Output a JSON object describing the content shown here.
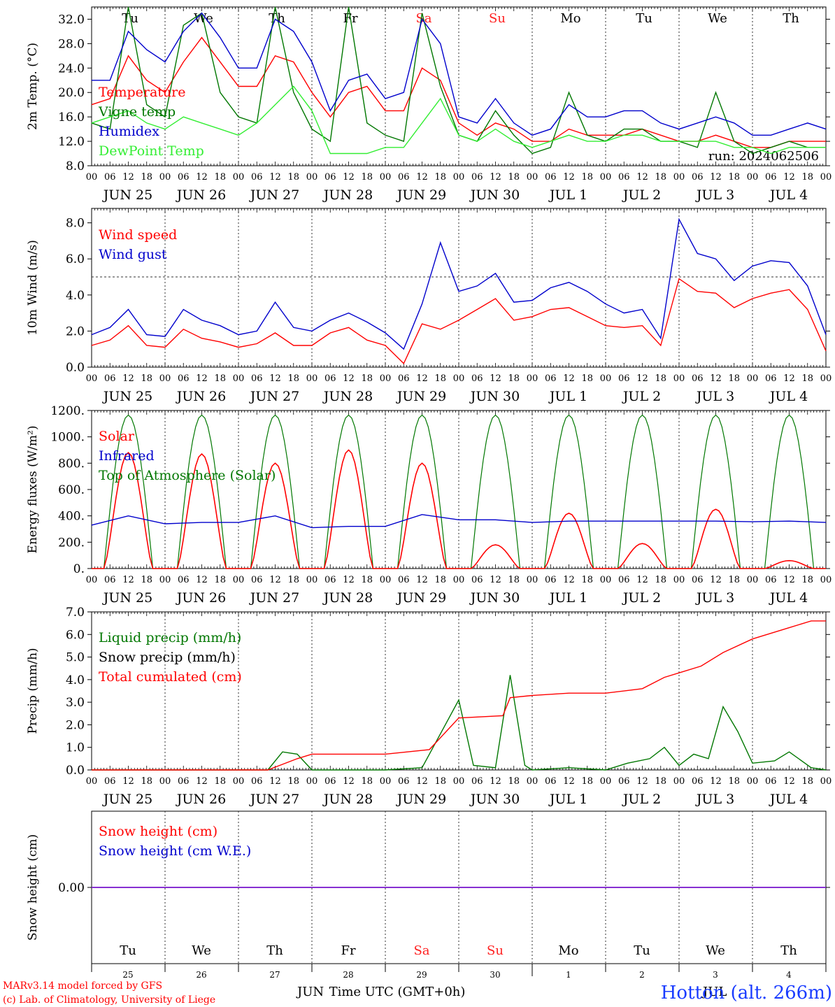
{
  "days": [
    {
      "name": "Tu",
      "color": "#000000",
      "date": "JUN 25",
      "num": "25"
    },
    {
      "name": "We",
      "color": "#000000",
      "date": "JUN 26",
      "num": "26"
    },
    {
      "name": "Th",
      "color": "#000000",
      "date": "JUN 27",
      "num": "27"
    },
    {
      "name": "Fr",
      "color": "#000000",
      "date": "JUN 28",
      "num": "28"
    },
    {
      "name": "Sa",
      "color": "#ff2020",
      "date": "JUN 29",
      "num": "29"
    },
    {
      "name": "Su",
      "color": "#ff2020",
      "date": "JUN 30",
      "num": "30"
    },
    {
      "name": "Mo",
      "color": "#000000",
      "date": "JUL  1",
      "num": "1"
    },
    {
      "name": "Tu",
      "color": "#000000",
      "date": "JUL  2",
      "num": "2"
    },
    {
      "name": "We",
      "color": "#000000",
      "date": "JUL  3",
      "num": "3"
    },
    {
      "name": "Th",
      "color": "#000000",
      "date": "JUL  4",
      "num": "4"
    }
  ],
  "hour_labels": [
    "00",
    "06",
    "12",
    "18"
  ],
  "footer": {
    "credit_line1": "MARv3.14 model forced by GFS",
    "credit_line2": "(c) Lab. of Climatology, University of Liege",
    "xlabel": "Time UTC (GMT+0h)",
    "month_left": "JUN",
    "month_right": "JUL",
    "station": "Hotton (alt. 266m)"
  },
  "chart_data": [
    {
      "type": "line",
      "ylabel": "2m Temp. (°C)",
      "ylim": [
        8,
        34
      ],
      "yticks": [
        "8.0",
        "12.0",
        "16.0",
        "20.0",
        "24.0",
        "28.0",
        "32.0"
      ],
      "run_label": "run: 2024062506",
      "legend": [
        "Temperature",
        "Vigne temp",
        "Humidex",
        "DewPoint Temp"
      ],
      "series": [
        {
          "name": "Temperature",
          "color": "#ff0000",
          "x": [
            0,
            0.25,
            0.5,
            0.75,
            1,
            1.25,
            1.5,
            1.75,
            2,
            2.25,
            2.5,
            2.75,
            3,
            3.25,
            3.5,
            3.75,
            4,
            4.25,
            4.5,
            4.75,
            5,
            5.25,
            5.5,
            5.75,
            6,
            6.25,
            6.5,
            6.75,
            7,
            7.25,
            7.5,
            7.75,
            8,
            8.25,
            8.5,
            8.75,
            9,
            9.25,
            9.5,
            9.75,
            10
          ],
          "y": [
            18,
            19,
            26,
            22,
            20,
            25,
            29,
            25,
            21,
            21,
            26,
            25,
            20,
            16,
            20,
            21,
            17,
            17,
            24,
            22,
            15,
            13,
            15,
            14,
            12,
            12,
            14,
            13,
            13,
            13,
            14,
            13,
            12,
            12,
            13,
            12,
            11,
            11,
            12,
            12,
            12
          ]
        },
        {
          "name": "Vigne temp",
          "color": "#007700",
          "x": [
            0,
            0.25,
            0.5,
            0.75,
            1,
            1.25,
            1.5,
            1.75,
            2,
            2.25,
            2.5,
            2.75,
            3,
            3.25,
            3.5,
            3.75,
            4,
            4.25,
            4.5,
            4.75,
            5,
            5.25,
            5.5,
            5.75,
            6,
            6.25,
            6.5,
            6.75,
            7,
            7.25,
            7.5,
            7.75,
            8,
            8.25,
            8.5,
            8.75,
            9,
            9.25,
            9.5,
            9.75,
            10
          ],
          "y": [
            15,
            14,
            34,
            18,
            16,
            31,
            33,
            20,
            16,
            15,
            34,
            20,
            14,
            12,
            34,
            15,
            13,
            12,
            33,
            21,
            13,
            12,
            17,
            13,
            10,
            11,
            20,
            13,
            12,
            14,
            14,
            12,
            12,
            11,
            20,
            12,
            10,
            11,
            12,
            11,
            11
          ]
        },
        {
          "name": "Humidex",
          "color": "#0000cc",
          "x": [
            0,
            0.25,
            0.5,
            0.75,
            1,
            1.25,
            1.5,
            1.75,
            2,
            2.25,
            2.5,
            2.75,
            3,
            3.25,
            3.5,
            3.75,
            4,
            4.25,
            4.5,
            4.75,
            5,
            5.25,
            5.5,
            5.75,
            6,
            6.25,
            6.5,
            6.75,
            7,
            7.25,
            7.5,
            7.75,
            8,
            8.25,
            8.5,
            8.75,
            9,
            9.25,
            9.5,
            9.75,
            10
          ],
          "y": [
            22,
            22,
            30,
            27,
            25,
            30,
            33,
            29,
            24,
            24,
            32,
            30,
            25,
            17,
            22,
            23,
            19,
            20,
            32,
            28,
            16,
            15,
            19,
            15,
            13,
            14,
            18,
            16,
            16,
            17,
            17,
            15,
            14,
            15,
            16,
            15,
            13,
            13,
            14,
            15,
            14
          ]
        },
        {
          "name": "DewPoint Temp",
          "color": "#33ee33",
          "x": [
            0,
            0.25,
            0.5,
            0.75,
            1,
            1.25,
            1.5,
            1.75,
            2,
            2.25,
            2.5,
            2.75,
            3,
            3.25,
            3.5,
            3.75,
            4,
            4.25,
            4.5,
            4.75,
            5,
            5.25,
            5.5,
            5.75,
            6,
            6.25,
            6.5,
            6.75,
            7,
            7.25,
            7.5,
            7.75,
            8,
            8.25,
            8.5,
            8.75,
            9,
            9.25,
            9.5,
            9.75,
            10
          ],
          "y": [
            15,
            16,
            17,
            15,
            14,
            16,
            15,
            14,
            13,
            15,
            18,
            21,
            17,
            10,
            10,
            10,
            11,
            11,
            15,
            19,
            13,
            12,
            14,
            12,
            11,
            12,
            13,
            12,
            12,
            13,
            13,
            12,
            12,
            12,
            12,
            11,
            11,
            10,
            11,
            11,
            11
          ]
        }
      ]
    },
    {
      "type": "line",
      "ylabel": "10m Wind (m/s)",
      "ylim": [
        0,
        8.8
      ],
      "yticks": [
        "0.0",
        "2.0",
        "4.0",
        "6.0",
        "8.0"
      ],
      "threshold": 5,
      "legend": [
        "Wind speed",
        "Wind gust"
      ],
      "series": [
        {
          "name": "Wind speed",
          "color": "#ff0000",
          "x": [
            0,
            0.25,
            0.5,
            0.75,
            1,
            1.25,
            1.5,
            1.75,
            2,
            2.25,
            2.5,
            2.75,
            3,
            3.25,
            3.5,
            3.75,
            4,
            4.25,
            4.5,
            4.75,
            5,
            5.25,
            5.5,
            5.75,
            6,
            6.25,
            6.5,
            6.75,
            7,
            7.25,
            7.5,
            7.75,
            8,
            8.25,
            8.5,
            8.75,
            9,
            9.25,
            9.5,
            9.75,
            10
          ],
          "y": [
            1.2,
            1.5,
            2.3,
            1.2,
            1.1,
            2.1,
            1.6,
            1.4,
            1.1,
            1.3,
            1.9,
            1.2,
            1.2,
            1.9,
            2.2,
            1.5,
            1.2,
            0.2,
            2.4,
            2.1,
            2.6,
            3.2,
            3.8,
            2.6,
            2.8,
            3.2,
            3.3,
            2.8,
            2.3,
            2.2,
            2.3,
            1.2,
            4.9,
            4.2,
            4.1,
            3.3,
            3.8,
            4.1,
            4.3,
            3.2,
            0.9
          ]
        },
        {
          "name": "Wind gust",
          "color": "#0000cc",
          "x": [
            0,
            0.25,
            0.5,
            0.75,
            1,
            1.25,
            1.5,
            1.75,
            2,
            2.25,
            2.5,
            2.75,
            3,
            3.25,
            3.5,
            3.75,
            4,
            4.25,
            4.5,
            4.75,
            5,
            5.25,
            5.5,
            5.75,
            6,
            6.25,
            6.5,
            6.75,
            7,
            7.25,
            7.5,
            7.75,
            8,
            8.25,
            8.5,
            8.75,
            9,
            9.25,
            9.5,
            9.75,
            10
          ],
          "y": [
            1.8,
            2.2,
            3.2,
            1.8,
            1.7,
            3.2,
            2.6,
            2.3,
            1.8,
            2.0,
            3.6,
            2.2,
            2.0,
            2.6,
            3.0,
            2.5,
            1.9,
            1.0,
            3.5,
            6.9,
            4.2,
            4.5,
            5.2,
            3.6,
            3.7,
            4.4,
            4.7,
            4.2,
            3.5,
            3.0,
            3.2,
            1.6,
            8.2,
            6.3,
            6.0,
            4.8,
            5.6,
            5.9,
            5.8,
            4.5,
            1.8
          ]
        }
      ]
    },
    {
      "type": "line",
      "ylabel": "Energy fluxes (W/m²)",
      "ylim": [
        0,
        1200
      ],
      "yticks": [
        "0.",
        "200.",
        "400.",
        "600.",
        "800.",
        "1000.",
        "1200."
      ],
      "legend": [
        "Solar",
        "Infrared",
        "Top of Atmosphere (Solar)"
      ],
      "series": [
        {
          "name": "Top of Atmosphere (Solar)",
          "color": "#007700",
          "daily_peak": 1165,
          "daylength_hours": 16
        },
        {
          "name": "Solar",
          "color": "#ff0000",
          "daily_peak": [
            880,
            870,
            800,
            900,
            800,
            180,
            420,
            190,
            450,
            60
          ]
        },
        {
          "name": "Infrared",
          "color": "#0000cc",
          "x": [
            0,
            0.5,
            1,
            1.5,
            2,
            2.5,
            3,
            3.5,
            4,
            4.5,
            5,
            5.5,
            6,
            6.5,
            7,
            7.5,
            8,
            8.5,
            9,
            9.5,
            10
          ],
          "y": [
            330,
            400,
            340,
            350,
            350,
            400,
            310,
            320,
            320,
            410,
            370,
            370,
            350,
            360,
            360,
            360,
            360,
            360,
            355,
            360,
            350
          ]
        }
      ]
    },
    {
      "type": "line",
      "ylabel": "Precip (mm/h)",
      "ylim": [
        0,
        7
      ],
      "yticks": [
        "0.0",
        "1.0",
        "2.0",
        "3.0",
        "4.0",
        "5.0",
        "6.0",
        "7.0"
      ],
      "legend": [
        "Liquid precip (mm/h)",
        "Snow precip (mm/h)",
        "Total cumulated (cm)"
      ],
      "series": [
        {
          "name": "Liquid precip (mm/h)",
          "color": "#007700",
          "x": [
            0,
            2.4,
            2.6,
            2.8,
            3.0,
            3.5,
            4.0,
            4.5,
            4.8,
            5.0,
            5.2,
            5.5,
            5.7,
            5.9,
            6.0,
            6.5,
            7.0,
            7.3,
            7.6,
            7.8,
            8.0,
            8.2,
            8.4,
            8.6,
            8.8,
            9.0,
            9.3,
            9.5,
            9.8,
            10
          ],
          "y": [
            0,
            0,
            0.8,
            0.7,
            0,
            0,
            0,
            0.1,
            1.9,
            3.1,
            0.2,
            0.1,
            4.2,
            0.2,
            0,
            0.1,
            0,
            0.3,
            0.5,
            1.0,
            0.2,
            0.7,
            0.5,
            2.8,
            1.7,
            0.3,
            0.4,
            0.8,
            0.1,
            0
          ]
        },
        {
          "name": "Total cumulated (cm)",
          "color": "#ff0000",
          "x": [
            0,
            2.4,
            2.8,
            3.0,
            4.0,
            4.6,
            5.0,
            5.6,
            5.7,
            6.0,
            6.5,
            7.0,
            7.5,
            7.8,
            8.0,
            8.3,
            8.6,
            9.0,
            9.5,
            9.8,
            10
          ],
          "y": [
            0,
            0,
            0.5,
            0.7,
            0.7,
            0.9,
            2.3,
            2.4,
            3.2,
            3.3,
            3.4,
            3.4,
            3.6,
            4.1,
            4.3,
            4.6,
            5.2,
            5.8,
            6.3,
            6.6,
            6.6
          ]
        }
      ]
    },
    {
      "type": "line",
      "ylabel": "Snow height (cm)",
      "ylim": [
        -1,
        1
      ],
      "yticks": [
        "0.00"
      ],
      "legend": [
        "Snow height (cm)",
        "Snow height (cm W.E.)"
      ],
      "series": [
        {
          "name": "Snow height (cm)",
          "color": "#ff0000",
          "x": [
            0,
            10
          ],
          "y": [
            0,
            0
          ]
        },
        {
          "name": "Snow height (cm W.E.)",
          "color": "#0000cc",
          "x": [
            0,
            10
          ],
          "y": [
            0,
            0
          ]
        }
      ]
    }
  ]
}
